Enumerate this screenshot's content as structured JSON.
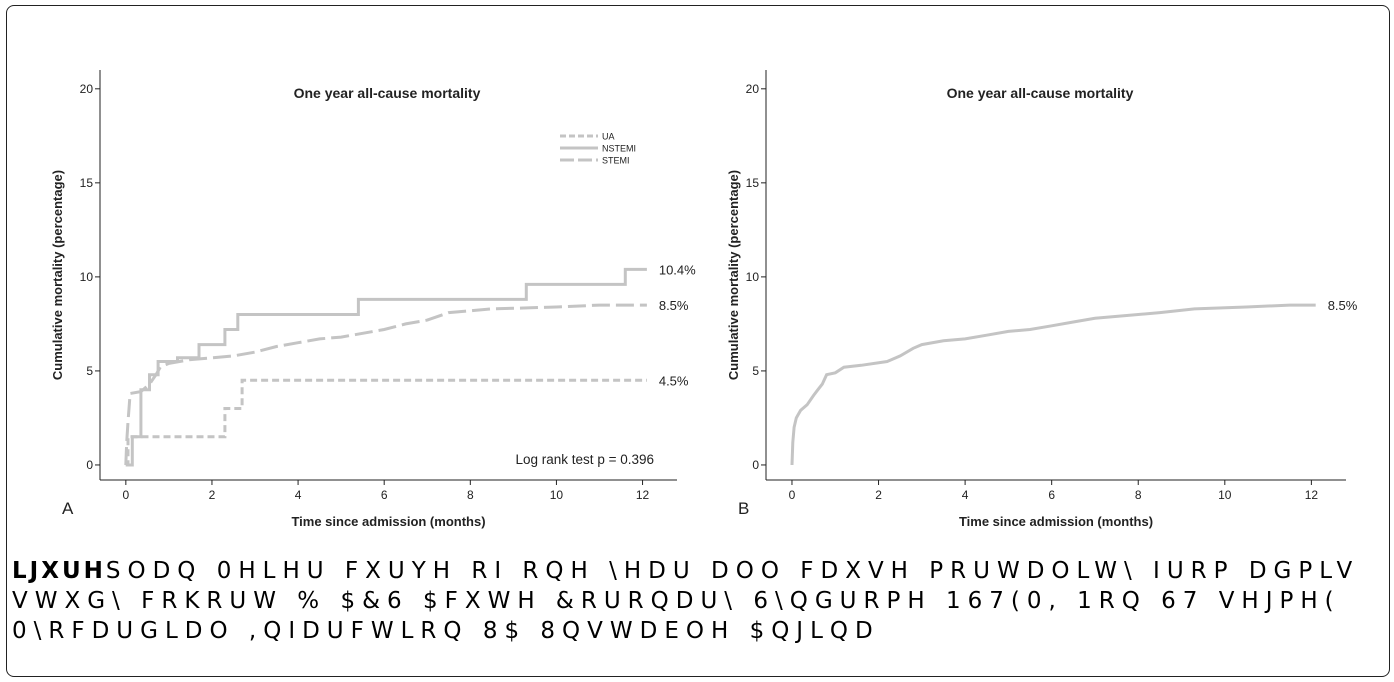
{
  "caption": {
    "lines": [
      [
        "LJXUH",
        "SODQ 0HLHU FXUYH RI RQH \\HDU DOO FDXVH PRUWDOLW\\ IURP DGPLV"
      ],
      [
        "",
        "VWXG\\ FRKRUW  %   $&6  $FXWH &RURQDU\\ 6\\QGURPH  167(0,  1RQ 67 VHJPH("
      ],
      [
        "",
        "0\\RFDUGLDO ,QIDUFWLRQ  8$  8QVWDEOH $QJLQD"
      ]
    ]
  },
  "chart_data": [
    {
      "panel_label": "A",
      "type": "line",
      "title": "One year all-cause mortality",
      "xlabel": "Time since admission (months)",
      "ylabel": "Cumulative mortality (percentage)",
      "xlim": [
        -0.6,
        12.8
      ],
      "ylim": [
        -0.8,
        21.0
      ],
      "xticks": [
        0,
        2,
        4,
        6,
        8,
        10,
        12
      ],
      "yticks": [
        0,
        5,
        10,
        15,
        20
      ],
      "grid": false,
      "legend_position": "top-right",
      "annotation": "Log rank test p = 0.396",
      "color": "#c4c4c4",
      "series": [
        {
          "name": "UA",
          "dash": "dotted",
          "end_label": "4.5%",
          "points": [
            [
              0,
              0
            ],
            [
              0.05,
              0
            ],
            [
              0.05,
              1.5
            ],
            [
              2.3,
              1.5
            ],
            [
              2.3,
              3.0
            ],
            [
              2.7,
              3.0
            ],
            [
              2.7,
              4.5
            ],
            [
              12.1,
              4.5
            ]
          ]
        },
        {
          "name": "NSTEMI",
          "dash": "solid",
          "end_label": "10.4%",
          "points": [
            [
              0,
              0
            ],
            [
              0.15,
              0
            ],
            [
              0.15,
              1.5
            ],
            [
              0.35,
              1.5
            ],
            [
              0.35,
              4.0
            ],
            [
              0.55,
              4.0
            ],
            [
              0.55,
              4.8
            ],
            [
              0.75,
              4.8
            ],
            [
              0.75,
              5.5
            ],
            [
              1.2,
              5.5
            ],
            [
              1.2,
              5.7
            ],
            [
              1.7,
              5.7
            ],
            [
              1.7,
              6.4
            ],
            [
              2.3,
              6.4
            ],
            [
              2.3,
              7.2
            ],
            [
              2.6,
              7.2
            ],
            [
              2.6,
              8.0
            ],
            [
              5.4,
              8.0
            ],
            [
              5.4,
              8.8
            ],
            [
              9.3,
              8.8
            ],
            [
              9.3,
              9.6
            ],
            [
              11.6,
              9.6
            ],
            [
              11.6,
              10.4
            ],
            [
              12.1,
              10.4
            ]
          ]
        },
        {
          "name": "STEMI",
          "dash": "dashed",
          "end_label": "8.5%",
          "points": [
            [
              0,
              0
            ],
            [
              0.02,
              1.2
            ],
            [
              0.05,
              2.3
            ],
            [
              0.08,
              3.2
            ],
            [
              0.1,
              3.8
            ],
            [
              0.35,
              3.9
            ],
            [
              0.55,
              4.3
            ],
            [
              0.7,
              4.8
            ],
            [
              0.8,
              5.2
            ],
            [
              1.0,
              5.4
            ],
            [
              1.5,
              5.6
            ],
            [
              2.0,
              5.7
            ],
            [
              2.5,
              5.8
            ],
            [
              3.0,
              6.0
            ],
            [
              3.5,
              6.3
            ],
            [
              4.0,
              6.5
            ],
            [
              4.5,
              6.7
            ],
            [
              5.0,
              6.8
            ],
            [
              5.5,
              7.0
            ],
            [
              6.0,
              7.2
            ],
            [
              6.5,
              7.5
            ],
            [
              7.0,
              7.7
            ],
            [
              7.5,
              8.1
            ],
            [
              8.5,
              8.3
            ],
            [
              10.0,
              8.4
            ],
            [
              11.0,
              8.5
            ],
            [
              12.1,
              8.5
            ]
          ]
        }
      ]
    },
    {
      "panel_label": "B",
      "type": "line",
      "title": "One year all-cause mortality",
      "xlabel": "Time since admission (months)",
      "ylabel": "Cumulative mortality (percentage)",
      "xlim": [
        -0.6,
        12.8
      ],
      "ylim": [
        -0.8,
        21.0
      ],
      "xticks": [
        0,
        2,
        4,
        6,
        8,
        10,
        12
      ],
      "yticks": [
        0,
        5,
        10,
        15,
        20
      ],
      "grid": false,
      "color": "#c4c4c4",
      "series": [
        {
          "dash": "solid",
          "end_label": "8.5%",
          "points": [
            [
              0,
              0
            ],
            [
              0.02,
              1.2
            ],
            [
              0.05,
              2.0
            ],
            [
              0.1,
              2.5
            ],
            [
              0.2,
              2.9
            ],
            [
              0.35,
              3.2
            ],
            [
              0.5,
              3.7
            ],
            [
              0.6,
              4.0
            ],
            [
              0.7,
              4.3
            ],
            [
              0.8,
              4.8
            ],
            [
              1.0,
              4.9
            ],
            [
              1.2,
              5.2
            ],
            [
              1.6,
              5.3
            ],
            [
              2.2,
              5.5
            ],
            [
              2.5,
              5.8
            ],
            [
              2.8,
              6.2
            ],
            [
              3.0,
              6.4
            ],
            [
              3.5,
              6.6
            ],
            [
              4.0,
              6.7
            ],
            [
              4.5,
              6.9
            ],
            [
              5.0,
              7.1
            ],
            [
              5.5,
              7.2
            ],
            [
              6.0,
              7.4
            ],
            [
              6.5,
              7.6
            ],
            [
              7.0,
              7.8
            ],
            [
              7.5,
              7.9
            ],
            [
              8.5,
              8.1
            ],
            [
              9.3,
              8.3
            ],
            [
              10.5,
              8.4
            ],
            [
              11.5,
              8.5
            ],
            [
              12.1,
              8.5
            ]
          ]
        }
      ]
    }
  ]
}
